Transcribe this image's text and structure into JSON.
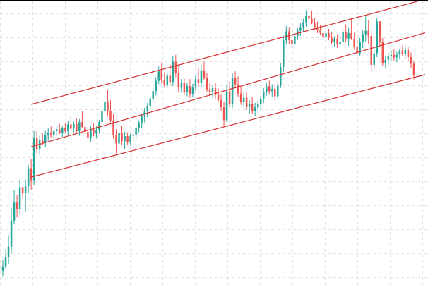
{
  "colors": {
    "background": "#ffffff",
    "grid": "#e3e3e3",
    "up": "#26a69a",
    "down": "#ef5350",
    "channel": "#d32f2f",
    "frame_top": "#000000"
  },
  "chart_data": {
    "type": "candlestick",
    "title": "",
    "xlabel": "",
    "ylabel": "",
    "grid": true,
    "legend": "none",
    "axes_visible": false,
    "x_range": [
      0,
      151
    ],
    "y_range": [
      0,
      100
    ],
    "candles_ohlc": [
      [
        5.4,
        9.3,
        3.8,
        7.2
      ],
      [
        7.2,
        13.2,
        6.3,
        10.5
      ],
      [
        10.5,
        18.1,
        8.0,
        14.1
      ],
      [
        14.1,
        27.7,
        11.7,
        23.2
      ],
      [
        23.2,
        33.8,
        21.9,
        29.5
      ],
      [
        29.5,
        32.3,
        24.3,
        27.2
      ],
      [
        27.2,
        37.5,
        25.4,
        34.9
      ],
      [
        34.9,
        34.6,
        30.9,
        33.0
      ],
      [
        33.0,
        37.5,
        26.4,
        35.1
      ],
      [
        35.1,
        42.6,
        32.6,
        41.5
      ],
      [
        41.5,
        44.6,
        34.0,
        37.3
      ],
      [
        37.3,
        54.5,
        35.4,
        51.9
      ],
      [
        51.9,
        54.5,
        46.6,
        48.0
      ],
      [
        48.0,
        52.8,
        46.1,
        51.2
      ],
      [
        51.2,
        53.8,
        49.6,
        50.4
      ],
      [
        50.4,
        54.5,
        49.0,
        53.1
      ],
      [
        53.1,
        55.5,
        51.0,
        54.0
      ],
      [
        54.0,
        56.1,
        52.2,
        53.1
      ],
      [
        53.1,
        55.2,
        51.6,
        54.4
      ],
      [
        54.4,
        56.3,
        52.6,
        55.1
      ],
      [
        55.1,
        57.0,
        53.4,
        53.9
      ],
      [
        53.9,
        56.2,
        52.4,
        55.6
      ],
      [
        55.6,
        57.4,
        53.8,
        54.5
      ],
      [
        54.5,
        57.9,
        53.2,
        56.8
      ],
      [
        56.8,
        59.6,
        54.9,
        55.3
      ],
      [
        55.3,
        57.8,
        54.0,
        56.9
      ],
      [
        56.9,
        59.1,
        53.7,
        54.4
      ],
      [
        54.4,
        58.6,
        52.8,
        57.6
      ],
      [
        57.6,
        61.3,
        55.4,
        55.9
      ],
      [
        55.9,
        58.2,
        53.5,
        54.2
      ],
      [
        54.2,
        56.4,
        51.0,
        52.2
      ],
      [
        52.2,
        56.2,
        50.7,
        55.0
      ],
      [
        55.0,
        57.3,
        52.7,
        53.6
      ],
      [
        53.6,
        56.1,
        51.9,
        54.8
      ],
      [
        54.8,
        58.4,
        53.6,
        57.6
      ],
      [
        57.6,
        62.7,
        56.4,
        61.3
      ],
      [
        61.3,
        67.0,
        59.8,
        64.7
      ],
      [
        64.7,
        68.7,
        59.8,
        61.4
      ],
      [
        61.4,
        65.2,
        57.5,
        58.2
      ],
      [
        58.2,
        60.6,
        51.8,
        53.0
      ],
      [
        53.0,
        55.1,
        46.7,
        50.1
      ],
      [
        50.1,
        55.4,
        48.6,
        53.7
      ],
      [
        53.7,
        56.4,
        49.6,
        51.0
      ],
      [
        51.0,
        54.2,
        48.2,
        52.7
      ],
      [
        52.7,
        54.0,
        49.5,
        50.5
      ],
      [
        50.5,
        53.5,
        49.4,
        52.8
      ],
      [
        52.8,
        55.0,
        50.8,
        53.2
      ],
      [
        53.2,
        56.5,
        51.3,
        55.5
      ],
      [
        55.5,
        58.2,
        54.0,
        57.4
      ],
      [
        57.4,
        60.4,
        55.6,
        59.6
      ],
      [
        59.6,
        62.6,
        57.5,
        61.3
      ],
      [
        61.3,
        64.3,
        59.4,
        63.3
      ],
      [
        63.3,
        66.4,
        61.8,
        65.8
      ],
      [
        65.8,
        69.4,
        64.6,
        68.4
      ],
      [
        68.4,
        73.3,
        66.9,
        72.0
      ],
      [
        72.0,
        77.0,
        70.9,
        75.3
      ],
      [
        75.3,
        78.4,
        71.1,
        72.3
      ],
      [
        72.3,
        74.9,
        69.6,
        70.7
      ],
      [
        70.7,
        75.0,
        69.4,
        73.8
      ],
      [
        73.8,
        77.8,
        70.2,
        71.6
      ],
      [
        71.6,
        80.6,
        70.1,
        78.7
      ],
      [
        78.7,
        81.1,
        73.3,
        74.8
      ],
      [
        74.8,
        77.1,
        67.9,
        69.6
      ],
      [
        69.6,
        72.6,
        67.8,
        71.2
      ],
      [
        71.2,
        73.0,
        67.0,
        68.0
      ],
      [
        68.0,
        71.2,
        66.6,
        70.2
      ],
      [
        70.2,
        72.6,
        66.1,
        67.4
      ],
      [
        67.4,
        71.0,
        66.2,
        69.8
      ],
      [
        69.8,
        73.8,
        68.6,
        72.6
      ],
      [
        72.6,
        76.4,
        70.0,
        71.3
      ],
      [
        71.3,
        77.6,
        69.9,
        75.7
      ],
      [
        75.7,
        78.7,
        72.2,
        73.1
      ],
      [
        73.1,
        74.9,
        68.1,
        69.0
      ],
      [
        69.0,
        71.4,
        66.7,
        68.0
      ],
      [
        68.0,
        70.5,
        66.1,
        69.4
      ],
      [
        69.4,
        71.2,
        65.8,
        67.1
      ],
      [
        67.1,
        69.4,
        64.5,
        65.3
      ],
      [
        65.3,
        67.5,
        61.6,
        62.8
      ],
      [
        62.8,
        64.8,
        56.3,
        58.3
      ],
      [
        58.3,
        70.8,
        57.6,
        68.4
      ],
      [
        68.4,
        71.8,
        62.7,
        63.9
      ],
      [
        63.9,
        74.8,
        62.6,
        73.0
      ],
      [
        73.0,
        75.3,
        69.4,
        70.8
      ],
      [
        70.8,
        73.6,
        66.5,
        67.6
      ],
      [
        67.6,
        70.2,
        63.6,
        64.6
      ],
      [
        64.6,
        67.9,
        62.9,
        66.1
      ],
      [
        66.1,
        68.1,
        61.8,
        62.9
      ],
      [
        62.9,
        65.3,
        60.4,
        63.8
      ],
      [
        63.8,
        66.4,
        60.5,
        61.5
      ],
      [
        61.5,
        64.3,
        59.6,
        62.7
      ],
      [
        62.7,
        65.0,
        60.7,
        63.8
      ],
      [
        63.8,
        66.9,
        62.5,
        65.8
      ],
      [
        65.8,
        69.5,
        64.3,
        68.1
      ],
      [
        68.1,
        71.5,
        66.8,
        70.1
      ],
      [
        70.1,
        72.1,
        67.4,
        68.4
      ],
      [
        68.4,
        70.8,
        66.3,
        69.2
      ],
      [
        69.2,
        71.0,
        65.3,
        66.6
      ],
      [
        66.6,
        71.8,
        65.9,
        70.3
      ],
      [
        70.3,
        78.1,
        69.5,
        76.8
      ],
      [
        76.8,
        87.8,
        75.2,
        86.1
      ],
      [
        86.1,
        91.1,
        84.7,
        89.3
      ],
      [
        89.3,
        90.8,
        84.9,
        86.2
      ],
      [
        86.2,
        88.4,
        83.5,
        84.8
      ],
      [
        84.8,
        88.7,
        83.1,
        87.6
      ],
      [
        87.6,
        90.6,
        86.3,
        89.5
      ],
      [
        89.5,
        92.2,
        87.7,
        90.8
      ],
      [
        90.8,
        93.7,
        89.2,
        92.5
      ],
      [
        92.5,
        96.7,
        91.0,
        94.8
      ],
      [
        94.8,
        97.5,
        92.6,
        93.7
      ],
      [
        93.7,
        96.3,
        91.8,
        92.4
      ],
      [
        92.4,
        94.1,
        89.9,
        90.8
      ],
      [
        90.8,
        92.7,
        88.7,
        89.9
      ],
      [
        89.9,
        91.6,
        87.9,
        88.7
      ],
      [
        88.7,
        90.4,
        86.7,
        87.4
      ],
      [
        87.4,
        89.5,
        85.7,
        88.6
      ],
      [
        88.6,
        90.2,
        86.2,
        87.1
      ],
      [
        87.1,
        88.9,
        84.8,
        85.7
      ],
      [
        85.7,
        87.6,
        84.0,
        86.5
      ],
      [
        86.5,
        88.3,
        83.6,
        84.8
      ],
      [
        84.8,
        87.2,
        82.8,
        85.5
      ],
      [
        85.5,
        90.6,
        84.5,
        89.2
      ],
      [
        89.2,
        91.7,
        85.4,
        86.8
      ],
      [
        86.8,
        90.8,
        84.2,
        88.7
      ],
      [
        88.7,
        94.0,
        86.3,
        86.6
      ],
      [
        86.6,
        88.8,
        82.9,
        84.0
      ],
      [
        84.0,
        86.2,
        80.5,
        81.7
      ],
      [
        81.7,
        87.0,
        80.6,
        85.5
      ],
      [
        85.5,
        89.6,
        83.5,
        88.3
      ],
      [
        88.3,
        94.5,
        85.8,
        89.5
      ],
      [
        89.5,
        93.1,
        85.0,
        87.7
      ],
      [
        87.7,
        89.4,
        75.3,
        77.6
      ],
      [
        77.6,
        82.9,
        76.3,
        81.6
      ],
      [
        81.6,
        93.9,
        80.3,
        92.8
      ],
      [
        92.8,
        91.4,
        84.2,
        85.6
      ],
      [
        85.6,
        87.0,
        77.2,
        78.2
      ],
      [
        78.2,
        80.8,
        76.3,
        79.4
      ],
      [
        79.4,
        81.9,
        77.6,
        80.6
      ],
      [
        80.6,
        82.7,
        78.9,
        81.1
      ],
      [
        81.1,
        83.1,
        79.0,
        80.2
      ],
      [
        80.2,
        82.2,
        78.5,
        81.2
      ],
      [
        81.2,
        83.2,
        79.5,
        82.6
      ],
      [
        82.6,
        84.4,
        80.8,
        81.4
      ],
      [
        81.4,
        83.7,
        79.7,
        82.8
      ],
      [
        82.8,
        84.0,
        79.0,
        80.3
      ],
      [
        80.3,
        81.9,
        76.6,
        78.0
      ],
      [
        78.0,
        79.1,
        72.5,
        74.0
      ]
    ],
    "channel_lines": [
      {
        "name": "",
        "points": [
          [
            11,
            63.8
          ],
          [
            150,
            100.5
          ]
        ]
      },
      {
        "name": "",
        "points": [
          [
            11,
            49.0
          ],
          [
            150,
            88.8
          ]
        ]
      },
      {
        "name": "",
        "points": [
          [
            11,
            38.4
          ],
          [
            150,
            74.2
          ]
        ]
      }
    ]
  }
}
